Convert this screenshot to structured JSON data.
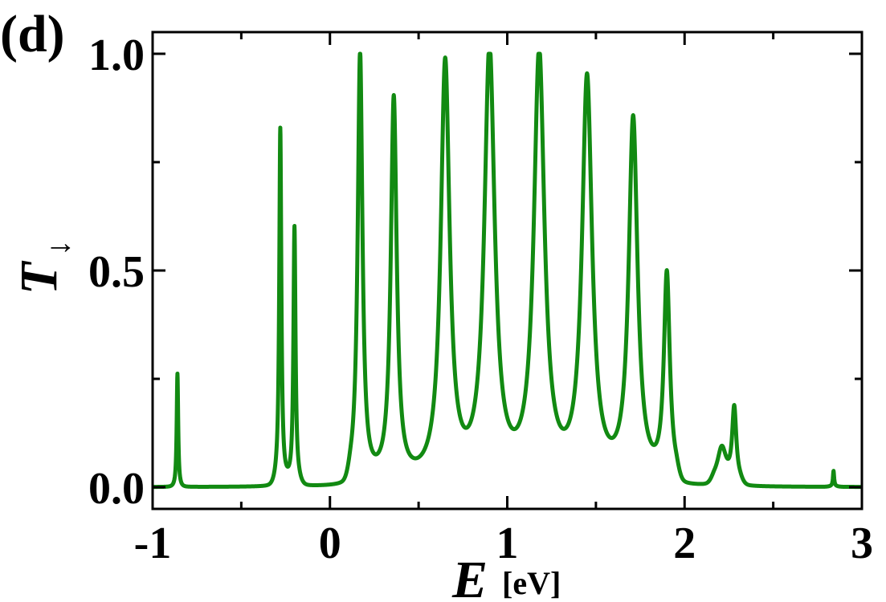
{
  "panel_label": "(d)",
  "chart_data": {
    "type": "line",
    "xlabel": {
      "symbol": "E",
      "unit": "[eV]"
    },
    "ylabel": {
      "symbol": "T",
      "subscript": "↓"
    },
    "xlim": [
      -1.0,
      3.0
    ],
    "ylim": [
      -0.05,
      1.05
    ],
    "xticks": [
      -1,
      0,
      1,
      2,
      3
    ],
    "xtick_labels": [
      "-1",
      "0",
      "1",
      "2",
      "3"
    ],
    "xminor": [
      -0.5,
      0.5,
      1.5,
      2.5
    ],
    "yticks": [
      0.0,
      0.5,
      1.0
    ],
    "ytick_labels": [
      "0.0",
      "0.5",
      "1.0"
    ],
    "yminor": [
      0.25,
      0.75
    ],
    "grid": false,
    "series": [
      {
        "color": "#128a12",
        "peaks": [
          {
            "E": -0.86,
            "height": 0.26,
            "width": 0.005
          },
          {
            "E": -0.28,
            "height": 0.82,
            "width": 0.007
          },
          {
            "E": -0.2,
            "height": 0.59,
            "width": 0.007
          },
          {
            "E": 0.17,
            "height": 0.99,
            "width": 0.016
          },
          {
            "E": 0.36,
            "height": 0.88,
            "width": 0.02
          },
          {
            "E": 0.65,
            "height": 0.96,
            "width": 0.03
          },
          {
            "E": 0.9,
            "height": 0.99,
            "width": 0.035
          },
          {
            "E": 1.18,
            "height": 0.98,
            "width": 0.036
          },
          {
            "E": 1.45,
            "height": 0.92,
            "width": 0.034
          },
          {
            "E": 1.71,
            "height": 0.83,
            "width": 0.03
          },
          {
            "E": 1.9,
            "height": 0.47,
            "width": 0.02
          },
          {
            "E": 2.21,
            "height": 0.08,
            "width": 0.03
          },
          {
            "E": 2.28,
            "height": 0.17,
            "width": 0.014
          },
          {
            "E": 2.84,
            "height": 0.035,
            "width": 0.004
          }
        ],
        "band": [
          {
            "from": -0.86,
            "to": -0.86
          },
          {
            "from": -0.3,
            "to": -0.18
          },
          {
            "from": 0.12,
            "to": 1.95
          },
          {
            "from": 2.17,
            "to": 2.31
          },
          {
            "from": 2.84,
            "to": 2.84
          }
        ]
      }
    ]
  }
}
